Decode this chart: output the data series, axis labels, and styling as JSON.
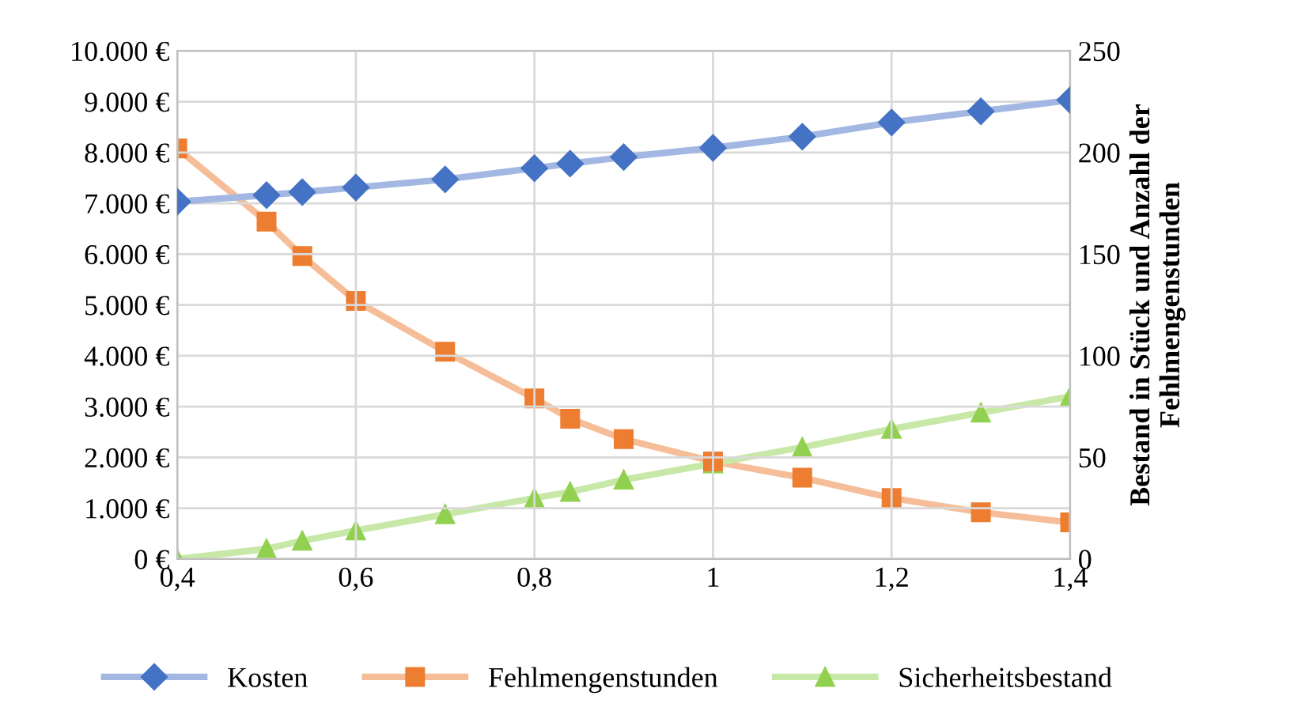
{
  "chart_data": {
    "type": "line",
    "y2label": "Bestand in Stück und Anzahl der Fehlmengenstunden",
    "x": [
      0.4,
      0.5,
      0.54,
      0.6,
      0.7,
      0.8,
      0.84,
      0.9,
      1.0,
      1.1,
      1.2,
      1.3,
      1.4
    ],
    "series": [
      {
        "name": "Kosten",
        "color": "#4472c4",
        "marker": "diamond",
        "values": [
          7030,
          7160,
          7220,
          7310,
          7470,
          7690,
          7780,
          7910,
          8090,
          8310,
          8590,
          8810,
          9030
        ]
      },
      {
        "name": "Fehlmengenstunden",
        "color": "#ed7d31",
        "marker": "square",
        "axis": "y2",
        "values": [
          202,
          166,
          149,
          127,
          102,
          79,
          69,
          59,
          48,
          40,
          30,
          23,
          18
        ]
      },
      {
        "name": "Sicherheitsbestand",
        "color": "#92d050",
        "marker": "triangle",
        "axis": "y2",
        "values": [
          0,
          5,
          9,
          14,
          22,
          30,
          33,
          39,
          47,
          55,
          64,
          72,
          80
        ]
      }
    ],
    "xlim": [
      0.4,
      1.4
    ],
    "xticks": [
      {
        "value": 0.4,
        "label": "0,4"
      },
      {
        "value": 0.6,
        "label": "0,6"
      },
      {
        "value": 0.8,
        "label": "0,8"
      },
      {
        "value": 1,
        "label": "1"
      },
      {
        "value": 1.2,
        "label": "1,2"
      },
      {
        "value": 1.4,
        "label": "1,4"
      }
    ],
    "ylim": [
      0,
      10000
    ],
    "yticks": [
      {
        "value": 0,
        "label": "0 €"
      },
      {
        "value": 1000,
        "label": "1.000 €"
      },
      {
        "value": 2000,
        "label": "2.000 €"
      },
      {
        "value": 3000,
        "label": "3.000 €"
      },
      {
        "value": 4000,
        "label": "4.000 €"
      },
      {
        "value": 5000,
        "label": "5.000 €"
      },
      {
        "value": 6000,
        "label": "6.000 €"
      },
      {
        "value": 7000,
        "label": "7.000 €"
      },
      {
        "value": 8000,
        "label": "8.000 €"
      },
      {
        "value": 9000,
        "label": "9.000 €"
      },
      {
        "value": 10000,
        "label": "10.000 €"
      }
    ],
    "y2lim": [
      0,
      250
    ],
    "y2ticks": [
      0,
      50,
      100,
      150,
      200,
      250
    ],
    "grid": true,
    "legend": "bottom",
    "line_style": "solid"
  }
}
